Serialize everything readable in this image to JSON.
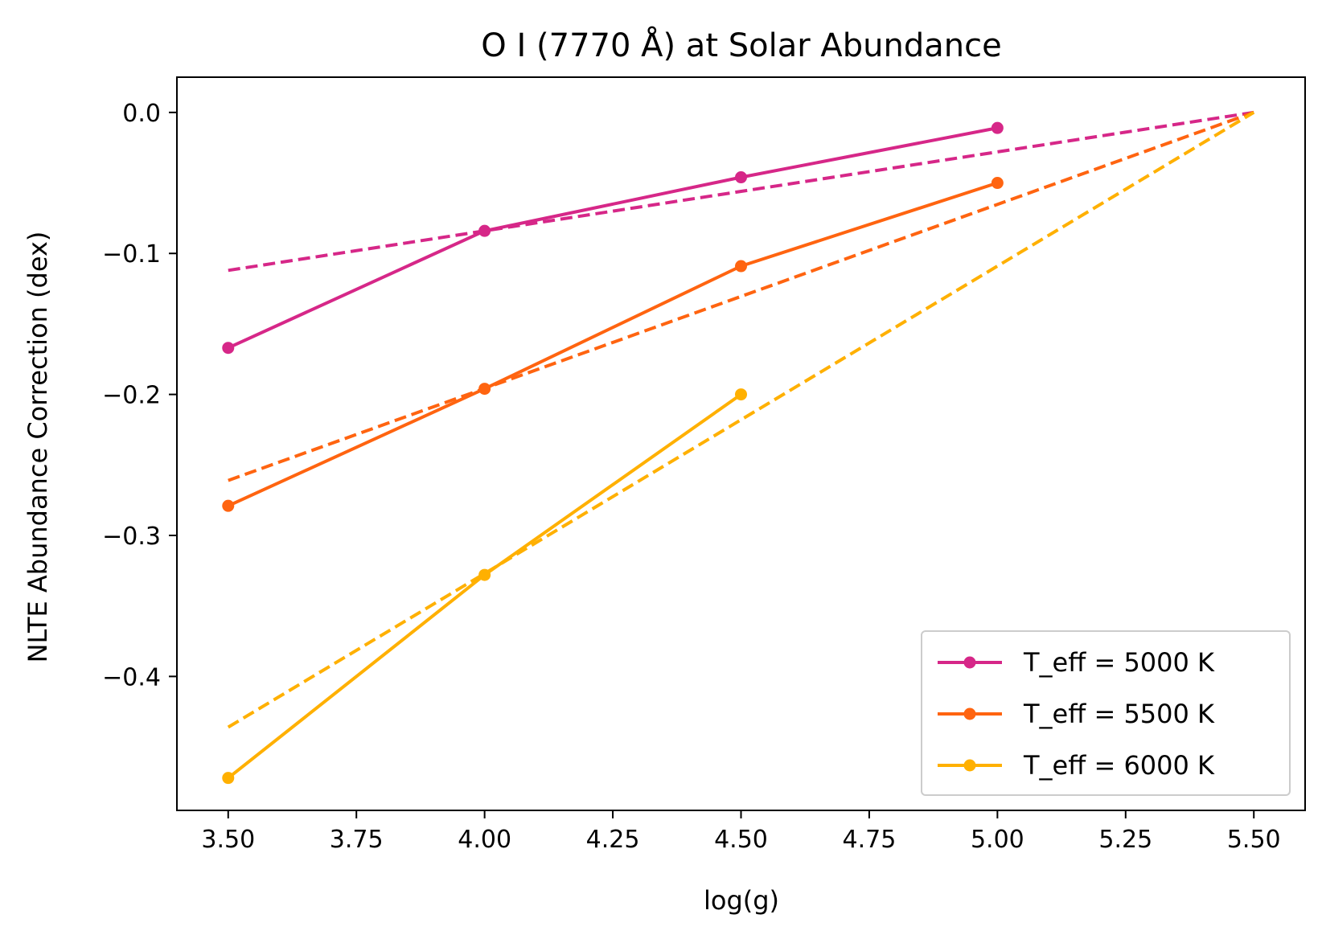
{
  "chart_data": {
    "type": "line",
    "title": "O I (7770 Å) at Solar Abundance",
    "xlabel": "log(g)",
    "ylabel": "NLTE Abundance Correction (dex)",
    "xlim": [
      3.4,
      5.6
    ],
    "ylim": [
      -0.495,
      0.025
    ],
    "xticks": [
      3.5,
      3.75,
      4.0,
      4.25,
      4.5,
      4.75,
      5.0,
      5.25,
      5.5
    ],
    "xtick_labels": [
      "3.50",
      "3.75",
      "4.00",
      "4.25",
      "4.50",
      "4.75",
      "5.00",
      "5.25",
      "5.50"
    ],
    "yticks": [
      0.0,
      -0.1,
      -0.2,
      -0.3,
      -0.4
    ],
    "ytick_labels": [
      "0.0",
      "−0.1",
      "−0.2",
      "−0.3",
      "−0.4"
    ],
    "legend_position": "lower-right",
    "series": [
      {
        "name": "T_eff = 5000 K",
        "color": "#d62788",
        "x": [
          3.5,
          4.0,
          4.5,
          5.0
        ],
        "values": [
          -0.167,
          -0.084,
          -0.046,
          -0.011
        ],
        "fit": {
          "x": [
            3.5,
            5.5
          ],
          "values": [
            -0.112,
            0.0
          ]
        }
      },
      {
        "name": "T_eff = 5500 K",
        "color": "#ff6410",
        "x": [
          3.5,
          4.0,
          4.5,
          5.0
        ],
        "values": [
          -0.279,
          -0.196,
          -0.109,
          -0.05
        ],
        "fit": {
          "x": [
            3.5,
            5.5
          ],
          "values": [
            -0.261,
            0.0
          ]
        }
      },
      {
        "name": "T_eff = 6000 K",
        "color": "#ffb000",
        "x": [
          3.5,
          4.0,
          4.5
        ],
        "values": [
          -0.472,
          -0.328,
          -0.2
        ],
        "fit": {
          "x": [
            3.5,
            5.5
          ],
          "values": [
            -0.436,
            0.0
          ]
        }
      }
    ]
  }
}
